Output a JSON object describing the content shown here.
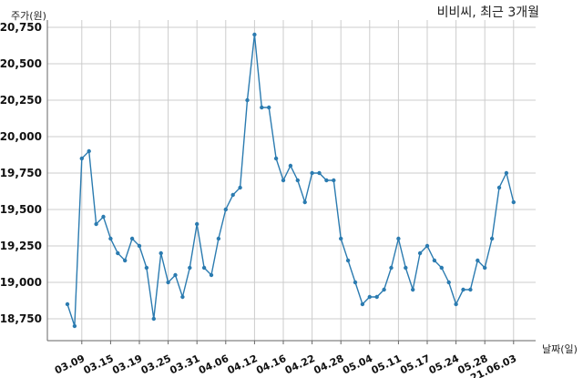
{
  "chart_data": {
    "type": "line",
    "title": "비비씨, 최근 3개월",
    "ylabel": "주가(원)",
    "xlabel": "날짜(일)",
    "ylim": [
      18600,
      20800
    ],
    "yticks": [
      18750,
      19000,
      19250,
      19500,
      19750,
      20000,
      20250,
      20500,
      20750
    ],
    "ytick_labels": [
      "18,750",
      "19,000",
      "19,250",
      "19,500",
      "19,750",
      "20,000",
      "20,250",
      "20,500",
      "20,750"
    ],
    "xtick_labels": [
      "03.09",
      "03.15",
      "03.19",
      "03.25",
      "03.31",
      "04.06",
      "04.12",
      "04.16",
      "04.22",
      "04.28",
      "05.04",
      "05.11",
      "05.17",
      "05.24",
      "05.28",
      "21.06.03"
    ],
    "xtick_indices": [
      2,
      6,
      10,
      14,
      18,
      22,
      26,
      30,
      34,
      38,
      42,
      46,
      50,
      54,
      58,
      62
    ],
    "grid": true,
    "line_color": "#2b7bb0",
    "series": [
      {
        "values": [
          18850,
          18700,
          19850,
          19900,
          19400,
          19450,
          19300,
          19200,
          19150,
          19300,
          19250,
          19100,
          18750,
          19200,
          19000,
          19050,
          18900,
          19100,
          19400,
          19100,
          19050,
          19300,
          19500,
          19600,
          19650,
          20250,
          20700,
          20200,
          20200,
          19850,
          19700,
          19800,
          19700,
          19550,
          19750,
          19750,
          19700,
          19700,
          19300,
          19150,
          19000,
          18850,
          18900,
          18900,
          18950,
          19100,
          19300,
          19100,
          18950,
          19200,
          19250,
          19150,
          19100,
          19000,
          18850,
          18950,
          18950,
          19150,
          19100,
          19300,
          19650,
          19750,
          19550
        ]
      }
    ]
  }
}
